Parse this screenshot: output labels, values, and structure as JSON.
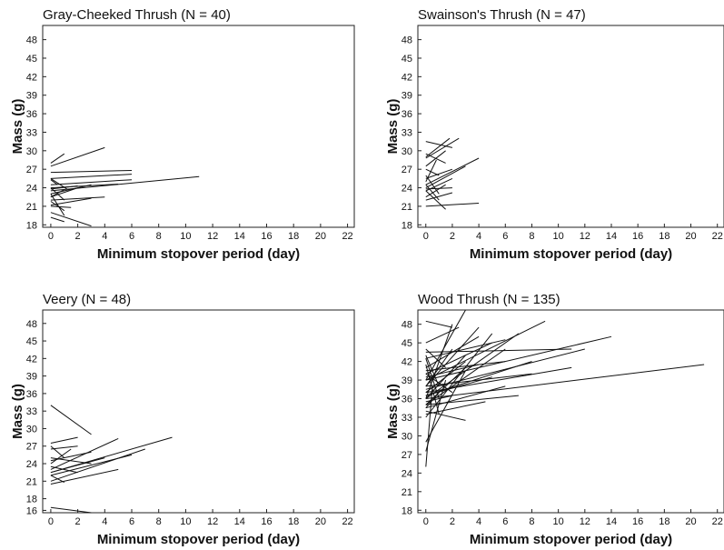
{
  "chart_data": [
    {
      "type": "line",
      "title": "Gray-Cheeked Thrush (N = 40)",
      "xlabel": "Minimum stopover period (day)",
      "ylabel": "Mass (g)",
      "xlim": [
        -0.6,
        22.5
      ],
      "ylim": [
        17.6,
        50.3
      ],
      "xticks": [
        0,
        2,
        4,
        6,
        8,
        10,
        12,
        14,
        16,
        18,
        20,
        22
      ],
      "yticks": [
        18,
        21,
        24,
        27,
        30,
        33,
        36,
        39,
        42,
        45,
        48
      ],
      "series": [
        {
          "x": [
            0,
            4
          ],
          "y": [
            27.5,
            30.5
          ]
        },
        {
          "x": [
            0,
            1.0
          ],
          "y": [
            28,
            29.5
          ]
        },
        {
          "x": [
            0,
            6
          ],
          "y": [
            26.5,
            26.8
          ]
        },
        {
          "x": [
            0,
            6
          ],
          "y": [
            25.5,
            26.2
          ]
        },
        {
          "x": [
            0,
            11
          ],
          "y": [
            23.5,
            25.8
          ]
        },
        {
          "x": [
            0,
            6
          ],
          "y": [
            24.5,
            25.3
          ]
        },
        {
          "x": [
            0,
            5
          ],
          "y": [
            24.0,
            24.6
          ]
        },
        {
          "x": [
            0,
            3
          ],
          "y": [
            23.0,
            24.5
          ]
        },
        {
          "x": [
            0,
            2
          ],
          "y": [
            22.5,
            24.0
          ]
        },
        {
          "x": [
            0,
            4
          ],
          "y": [
            22.0,
            22.5
          ]
        },
        {
          "x": [
            0,
            3
          ],
          "y": [
            21.2,
            22.3
          ]
        },
        {
          "x": [
            0,
            1.5
          ],
          "y": [
            21.0,
            20.8
          ]
        },
        {
          "x": [
            0,
            1
          ],
          "y": [
            24.0,
            22.0
          ]
        },
        {
          "x": [
            0,
            1.2
          ],
          "y": [
            25.5,
            23.8
          ]
        },
        {
          "x": [
            0,
            1
          ],
          "y": [
            23.0,
            19.5
          ]
        },
        {
          "x": [
            0,
            3
          ],
          "y": [
            20.0,
            17.8
          ]
        },
        {
          "x": [
            0,
            1
          ],
          "y": [
            19.2,
            18.5
          ]
        },
        {
          "x": [
            0,
            1
          ],
          "y": [
            21.8,
            20.3
          ]
        },
        {
          "x": [
            0,
            2
          ],
          "y": [
            23.8,
            24.3
          ]
        },
        {
          "x": [
            0,
            1
          ],
          "y": [
            22.5,
            23.7
          ]
        },
        {
          "x": [
            0,
            0.5
          ],
          "y": [
            25.3,
            24.5
          ]
        }
      ]
    },
    {
      "type": "line",
      "title": "Swainson's Thrush (N = 47)",
      "xlabel": "Minimum stopover period (day)",
      "ylabel": "Mass (g)",
      "xlim": [
        -0.6,
        22.5
      ],
      "ylim": [
        17.6,
        50.3
      ],
      "xticks": [
        0,
        2,
        4,
        6,
        8,
        10,
        12,
        14,
        16,
        18,
        20,
        22
      ],
      "yticks": [
        18,
        21,
        24,
        27,
        30,
        33,
        36,
        39,
        42,
        45,
        48
      ],
      "series": [
        {
          "x": [
            0,
            2
          ],
          "y": [
            31.5,
            30.5
          ]
        },
        {
          "x": [
            0,
            1.8
          ],
          "y": [
            29.0,
            32.0
          ]
        },
        {
          "x": [
            0,
            2.5
          ],
          "y": [
            28.8,
            32.0
          ]
        },
        {
          "x": [
            0,
            1.5
          ],
          "y": [
            27.5,
            30.0
          ]
        },
        {
          "x": [
            0,
            4
          ],
          "y": [
            24.5,
            28.8
          ]
        },
        {
          "x": [
            0,
            3
          ],
          "y": [
            24.0,
            27.5
          ]
        },
        {
          "x": [
            0,
            2
          ],
          "y": [
            25.5,
            27.0
          ]
        },
        {
          "x": [
            0,
            2
          ],
          "y": [
            23.5,
            25.5
          ]
        },
        {
          "x": [
            0,
            1.5
          ],
          "y": [
            22.5,
            24.5
          ]
        },
        {
          "x": [
            0,
            1
          ],
          "y": [
            26.0,
            23.0
          ]
        },
        {
          "x": [
            0,
            4
          ],
          "y": [
            21.0,
            21.5
          ]
        },
        {
          "x": [
            0,
            1.5
          ],
          "y": [
            23.5,
            20.5
          ]
        },
        {
          "x": [
            0,
            1
          ],
          "y": [
            24.5,
            22.0
          ]
        },
        {
          "x": [
            0,
            2
          ],
          "y": [
            23.8,
            24.0
          ]
        },
        {
          "x": [
            0,
            1
          ],
          "y": [
            27.0,
            26.0
          ]
        },
        {
          "x": [
            0,
            0.8
          ],
          "y": [
            25.0,
            28.5
          ]
        },
        {
          "x": [
            0,
            1.5
          ],
          "y": [
            29.5,
            28.0
          ]
        },
        {
          "x": [
            0,
            2
          ],
          "y": [
            22.0,
            23.2
          ]
        }
      ]
    },
    {
      "type": "line",
      "title": "Veery (N = 48)",
      "xlabel": "Minimum stopover period (day)",
      "ylabel": "Mass (g)",
      "xlim": [
        -0.6,
        22.5
      ],
      "ylim": [
        15.6,
        50.3
      ],
      "xticks": [
        0,
        2,
        4,
        6,
        8,
        10,
        12,
        14,
        16,
        18,
        20,
        22
      ],
      "yticks": [
        18,
        21,
        24,
        27,
        30,
        33,
        36,
        39,
        42,
        45,
        48,
        16
      ],
      "series": [
        {
          "x": [
            0,
            3
          ],
          "y": [
            34.0,
            29.0
          ]
        },
        {
          "x": [
            0,
            2
          ],
          "y": [
            27.5,
            28.5
          ]
        },
        {
          "x": [
            0,
            9
          ],
          "y": [
            22.5,
            28.5
          ]
        },
        {
          "x": [
            0,
            5
          ],
          "y": [
            23.0,
            28.3
          ]
        },
        {
          "x": [
            0,
            7
          ],
          "y": [
            21.0,
            26.5
          ]
        },
        {
          "x": [
            0,
            6
          ],
          "y": [
            22.0,
            25.5
          ]
        },
        {
          "x": [
            0,
            5
          ],
          "y": [
            20.5,
            23.0
          ]
        },
        {
          "x": [
            0,
            4
          ],
          "y": [
            22.5,
            25.0
          ]
        },
        {
          "x": [
            0,
            3
          ],
          "y": [
            24.5,
            26.0
          ]
        },
        {
          "x": [
            0,
            2
          ],
          "y": [
            26.5,
            27.0
          ]
        },
        {
          "x": [
            0,
            1
          ],
          "y": [
            27.0,
            25.0
          ]
        },
        {
          "x": [
            0,
            2
          ],
          "y": [
            23.5,
            22.5
          ]
        },
        {
          "x": [
            0,
            1
          ],
          "y": [
            22.0,
            20.8
          ]
        },
        {
          "x": [
            0,
            3
          ],
          "y": [
            25.0,
            24.0
          ]
        },
        {
          "x": [
            0,
            3
          ],
          "y": [
            16.5,
            15.6
          ]
        },
        {
          "x": [
            0,
            1.5
          ],
          "y": [
            24.0,
            26.5
          ]
        }
      ]
    },
    {
      "type": "line",
      "title": "Wood Thrush (N = 135)",
      "xlabel": "Minimum stopover period (day)",
      "ylabel": "Mass (g)",
      "xlim": [
        -0.6,
        22.5
      ],
      "ylim": [
        17.6,
        50.3
      ],
      "xticks": [
        0,
        2,
        4,
        6,
        8,
        10,
        12,
        14,
        16,
        18,
        20,
        22
      ],
      "yticks": [
        18,
        21,
        24,
        27,
        30,
        33,
        36,
        39,
        42,
        45,
        48
      ],
      "series": [
        {
          "x": [
            0,
            21
          ],
          "y": [
            36.0,
            41.5
          ]
        },
        {
          "x": [
            0,
            14
          ],
          "y": [
            39.0,
            46.0
          ]
        },
        {
          "x": [
            0,
            12
          ],
          "y": [
            37.5,
            44.0
          ]
        },
        {
          "x": [
            0,
            11
          ],
          "y": [
            37.0,
            41.0
          ]
        },
        {
          "x": [
            0,
            11
          ],
          "y": [
            43.5,
            44.0
          ]
        },
        {
          "x": [
            0,
            9
          ],
          "y": [
            39.0,
            48.5
          ]
        },
        {
          "x": [
            0,
            7
          ],
          "y": [
            36.0,
            46.5
          ]
        },
        {
          "x": [
            0,
            8
          ],
          "y": [
            36.5,
            42.0
          ]
        },
        {
          "x": [
            0,
            6
          ],
          "y": [
            35.0,
            44.0
          ]
        },
        {
          "x": [
            0,
            5
          ],
          "y": [
            33.0,
            46.5
          ]
        },
        {
          "x": [
            0,
            6
          ],
          "y": [
            34.5,
            38.0
          ]
        },
        {
          "x": [
            0,
            4
          ],
          "y": [
            38.0,
            47.5
          ]
        },
        {
          "x": [
            0,
            5
          ],
          "y": [
            40.0,
            45.0
          ]
        },
        {
          "x": [
            0,
            3
          ],
          "y": [
            39.0,
            50.3
          ]
        },
        {
          "x": [
            0,
            2
          ],
          "y": [
            36.0,
            48.0
          ]
        },
        {
          "x": [
            0,
            2.5
          ],
          "y": [
            45.0,
            47.5
          ]
        },
        {
          "x": [
            0,
            2
          ],
          "y": [
            48.5,
            47.5
          ]
        },
        {
          "x": [
            0,
            7
          ],
          "y": [
            35.0,
            36.5
          ]
        },
        {
          "x": [
            0,
            3
          ],
          "y": [
            34.0,
            32.5
          ]
        },
        {
          "x": [
            0,
            3
          ],
          "y": [
            29.0,
            40.5
          ]
        },
        {
          "x": [
            0,
            1.5
          ],
          "y": [
            27.5,
            39.0
          ]
        },
        {
          "x": [
            0,
            0.5
          ],
          "y": [
            25.0,
            38.0
          ]
        },
        {
          "x": [
            0,
            1
          ],
          "y": [
            42.5,
            36.0
          ]
        },
        {
          "x": [
            0,
            1
          ],
          "y": [
            41.5,
            33.5
          ]
        },
        {
          "x": [
            0,
            1.5
          ],
          "y": [
            44.0,
            41.0
          ]
        },
        {
          "x": [
            0,
            6
          ],
          "y": [
            40.5,
            42.0
          ]
        },
        {
          "x": [
            0,
            4
          ],
          "y": [
            39.5,
            41.5
          ]
        },
        {
          "x": [
            0,
            5
          ],
          "y": [
            36.5,
            39.5
          ]
        },
        {
          "x": [
            0,
            3
          ],
          "y": [
            37.0,
            42.0
          ]
        },
        {
          "x": [
            0,
            2
          ],
          "y": [
            38.0,
            44.0
          ]
        },
        {
          "x": [
            0,
            6
          ],
          "y": [
            42.5,
            45.5
          ]
        },
        {
          "x": [
            0,
            4
          ],
          "y": [
            41.0,
            46.0
          ]
        },
        {
          "x": [
            0,
            8
          ],
          "y": [
            38.0,
            40.0
          ]
        },
        {
          "x": [
            0,
            2
          ],
          "y": [
            35.5,
            36.5
          ]
        },
        {
          "x": [
            0,
            1
          ],
          "y": [
            34.5,
            37.0
          ]
        },
        {
          "x": [
            0,
            3
          ],
          "y": [
            36.0,
            43.0
          ]
        },
        {
          "x": [
            0,
            4.5
          ],
          "y": [
            33.5,
            35.5
          ]
        },
        {
          "x": [
            0,
            2
          ],
          "y": [
            40.0,
            37.0
          ]
        },
        {
          "x": [
            0,
            1
          ],
          "y": [
            43.0,
            38.0
          ]
        },
        {
          "x": [
            0,
            3
          ],
          "y": [
            35.0,
            41.0
          ]
        }
      ]
    }
  ]
}
